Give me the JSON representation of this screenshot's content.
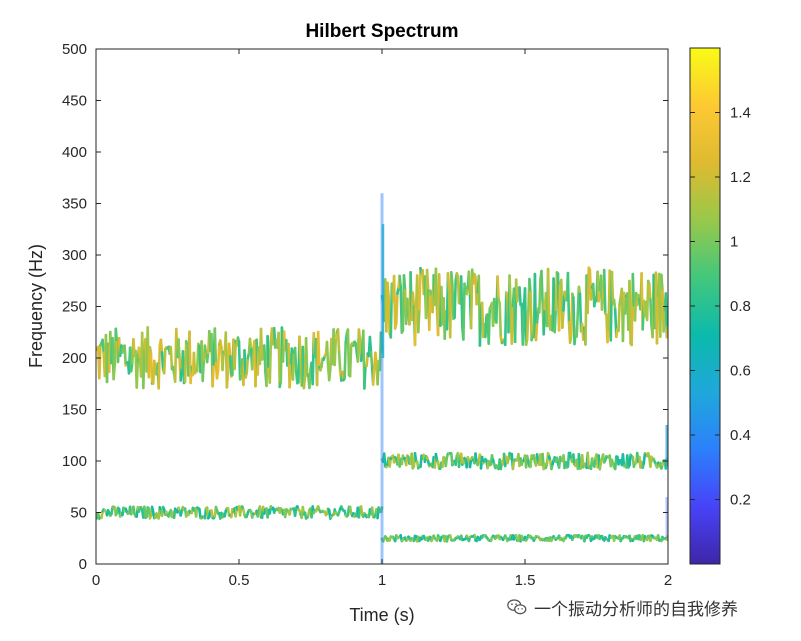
{
  "chart_data": {
    "type": "scatter",
    "title": "Hilbert Spectrum",
    "xlabel": "Time (s)",
    "ylabel": "Frequency (Hz)",
    "xlim": [
      0,
      2
    ],
    "ylim": [
      0,
      500
    ],
    "xticks": [
      0,
      0.5,
      1,
      1.5,
      2
    ],
    "xtick_labels": [
      "0",
      "0.5",
      "1",
      "1.5",
      "2"
    ],
    "yticks": [
      0,
      50,
      100,
      150,
      200,
      250,
      300,
      350,
      400,
      450,
      500
    ],
    "ytick_labels": [
      "0",
      "50",
      "100",
      "150",
      "200",
      "250",
      "300",
      "350",
      "400",
      "450",
      "500"
    ],
    "colorbar": {
      "range": [
        0,
        1.6
      ],
      "ticks": [
        0.2,
        0.4,
        0.6,
        0.8,
        1,
        1.2,
        1.4
      ],
      "tick_labels": [
        "0.2",
        "0.4",
        "0.6",
        "0.8",
        "1",
        "1.2",
        "1.4"
      ],
      "colormap": [
        "#3e26a8",
        "#4743f8",
        "#2c80fb",
        "#1fa8db",
        "#0cbaab",
        "#43c77c",
        "#99c84a",
        "#dfba30",
        "#fdc933",
        "#f9fb15"
      ]
    },
    "grid": false,
    "legend": "none",
    "series": [
      {
        "segments": [
          {
            "x_start": 0,
            "x_end": 1,
            "center": 200,
            "spread": 30
          },
          {
            "x_start": 1,
            "x_end": 2,
            "center": 250,
            "spread": 38
          }
        ],
        "amplitude": [
          0.8,
          1.3
        ]
      },
      {
        "segments": [
          {
            "x_start": 0,
            "x_end": 1,
            "center": 50,
            "spread": 6
          },
          {
            "x_start": 1,
            "x_end": 2,
            "center": 100,
            "spread": 8
          }
        ],
        "amplitude": [
          0.7,
          1.2
        ]
      },
      {
        "segments": [
          {
            "x_start": 1,
            "x_end": 2,
            "center": 25,
            "spread": 3
          }
        ],
        "amplitude": [
          0.7,
          1.1
        ]
      }
    ]
  },
  "watermark": {
    "text": "一个振动分析师的自我修养",
    "icon": "wechat-icon"
  }
}
